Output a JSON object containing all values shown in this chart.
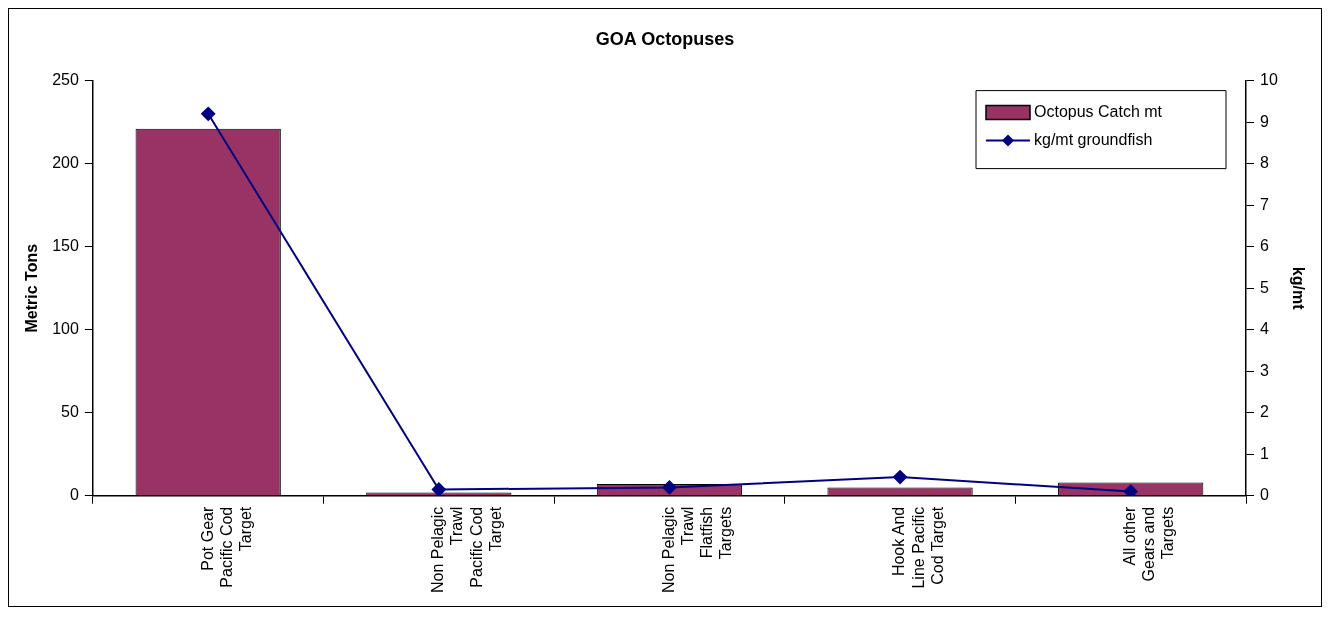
{
  "chart_data": {
    "type": "bar",
    "title": "GOA Octopuses",
    "ylabel": "Metric Tons",
    "y2label": "kg/mt",
    "categories": [
      "Pot Gear Pacific Cod Target",
      "Non Pelagic Trawl Pacific Cod Target",
      "Non Pelagic Trawl Flatfish Targets",
      "Hook And Line Pacific Cod Target",
      "All other Gears and Targets"
    ],
    "series": [
      {
        "name": "Octopus Catch mt",
        "color": "#993366",
        "values": [
          221,
          2,
          7,
          5,
          8
        ]
      },
      {
        "name": "kg/mt groundfish",
        "type": "line",
        "axis": "y2",
        "color": "#000080",
        "marker": "diamond",
        "values": [
          9.2,
          0.15,
          0.2,
          0.45,
          0.1
        ]
      }
    ],
    "ylim": [
      0,
      250
    ],
    "yticks": [
      0,
      50,
      100,
      150,
      200,
      250
    ],
    "y2lim": [
      0,
      10
    ],
    "y2ticks": [
      0,
      1,
      2,
      3,
      4,
      5,
      6,
      7,
      8,
      9,
      10
    ],
    "grid": false,
    "legend": "top right"
  }
}
